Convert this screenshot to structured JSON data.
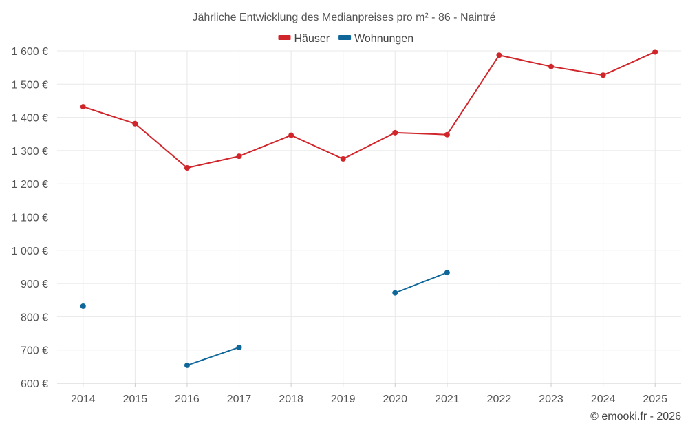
{
  "chart_data": {
    "type": "line",
    "title": "Jährliche Entwicklung des Medianpreises pro m² - 86 - Naintré",
    "categories": [
      "2014",
      "2015",
      "2016",
      "2017",
      "2018",
      "2019",
      "2020",
      "2021",
      "2022",
      "2023",
      "2024",
      "2025"
    ],
    "ylim": [
      600,
      1600
    ],
    "yticks": [
      600,
      700,
      800,
      900,
      1000,
      1100,
      1200,
      1300,
      1400,
      1500,
      1600
    ],
    "ytick_labels": [
      "600 €",
      "700 €",
      "800 €",
      "900 €",
      "1 000 €",
      "1 100 €",
      "1 200 €",
      "1 300 €",
      "1 400 €",
      "1 500 €",
      "1 600 €"
    ],
    "grid": true,
    "legend_position": "top-center",
    "series": [
      {
        "name": "Häuser",
        "color": "#d0262b",
        "values": [
          1432,
          1381,
          1248,
          1283,
          1346,
          1275,
          1354,
          1348,
          1587,
          1553,
          1527,
          1597
        ]
      },
      {
        "name": "Wohnungen",
        "color": "#0e6699",
        "values": [
          832,
          null,
          654,
          708,
          null,
          null,
          872,
          933,
          null,
          null,
          null,
          null
        ]
      }
    ]
  },
  "credit": "© emooki.fr - 2026"
}
